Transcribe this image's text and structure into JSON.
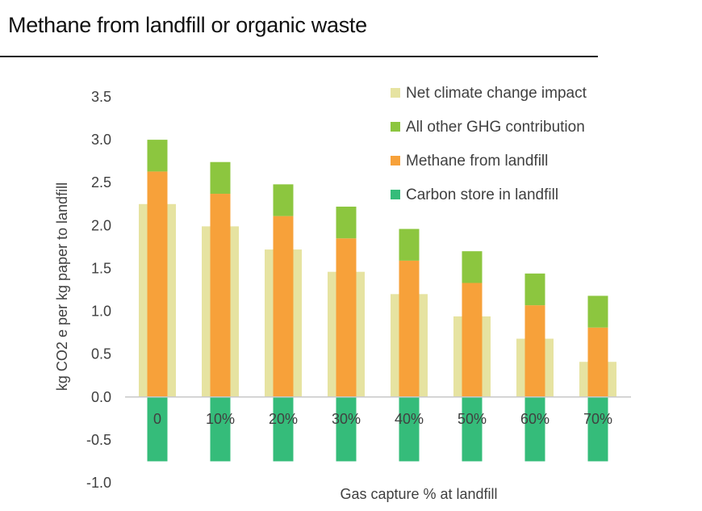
{
  "page": {
    "title": "Methane from landfill or organic waste"
  },
  "chart_data": {
    "type": "bar",
    "title": "Methane from landfill or organic waste",
    "xlabel": "Gas capture % at landfill",
    "ylabel": "kg CO2 e per kg paper to landfill",
    "ylim": [
      -1.0,
      3.5
    ],
    "yticks": [
      "3.5",
      "3.0",
      "2.5",
      "2.0",
      "1.5",
      "1.0",
      "0.5",
      "0.0",
      "-0.5",
      "-1.0"
    ],
    "ytick_values": [
      3.5,
      3.0,
      2.5,
      2.0,
      1.5,
      1.0,
      0.5,
      0.0,
      -0.5,
      -1.0
    ],
    "categories": [
      "0",
      "10%",
      "20%",
      "30%",
      "40%",
      "50%",
      "60%",
      "70%"
    ],
    "legend_position": "top-right",
    "series": [
      {
        "name": "Net climate change impact",
        "color": "#e6e3a1",
        "role": "wide-background",
        "values": [
          2.25,
          1.99,
          1.72,
          1.46,
          1.2,
          0.94,
          0.68,
          0.41
        ]
      },
      {
        "name": "All other GHG contribution",
        "color": "#8cc63f",
        "role": "stack-top",
        "values": [
          0.37,
          0.37,
          0.37,
          0.37,
          0.37,
          0.37,
          0.37,
          0.37
        ]
      },
      {
        "name": "Methane from landfill",
        "color": "#f7a13a",
        "role": "stack-base",
        "values": [
          2.63,
          2.37,
          2.11,
          1.85,
          1.59,
          1.33,
          1.07,
          0.81
        ]
      },
      {
        "name": "Carbon store in landfill",
        "color": "#35bc7a",
        "role": "negative",
        "values": [
          -0.75,
          -0.75,
          -0.75,
          -0.75,
          -0.75,
          -0.75,
          -0.75,
          -0.75
        ]
      }
    ],
    "colors": {
      "axis": "#c8c8c8",
      "text": "#404040"
    }
  }
}
